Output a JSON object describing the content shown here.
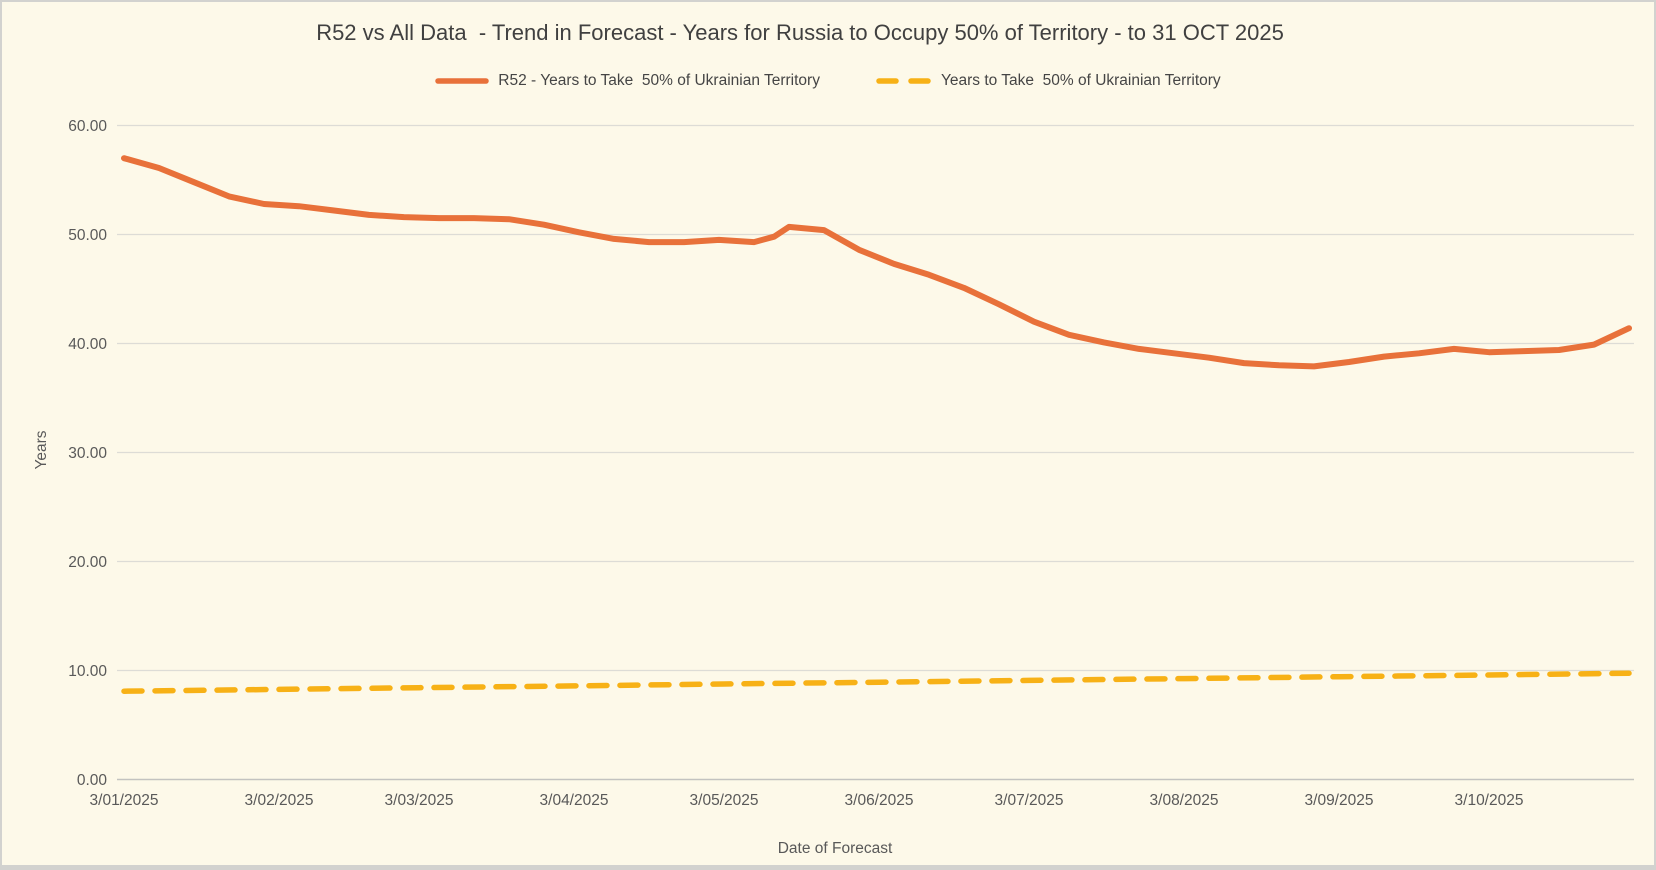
{
  "chart_data": {
    "type": "line",
    "title": "R52 vs All Data  - Trend in Forecast - Years for Russia to Occupy 50% of Territory - to 31 OCT 2025",
    "xlabel": "Date of Forecast",
    "ylabel": "Years",
    "ylim": [
      0,
      60
    ],
    "grid": "horizontal",
    "legend_position": "top",
    "background_color": "#FDF9E9",
    "gridline_color": "#dddcd6",
    "axis_line_color": "#c3c3c0",
    "tick_text_color": "#595959",
    "x_axis_start_date": "2025-01-01",
    "x_axis_end_date": "2025-11-01",
    "y_ticks": [
      {
        "value": 0,
        "label": "0.00"
      },
      {
        "value": 10,
        "label": "10.00"
      },
      {
        "value": 20,
        "label": "20.00"
      },
      {
        "value": 30,
        "label": "30.00"
      },
      {
        "value": 40,
        "label": "40.00"
      },
      {
        "value": 50,
        "label": "50.00"
      },
      {
        "value": 60,
        "label": "60.00"
      }
    ],
    "x_ticks": [
      {
        "date": "2025-01-03",
        "label": "3/01/2025"
      },
      {
        "date": "2025-02-03",
        "label": "3/02/2025"
      },
      {
        "date": "2025-03-03",
        "label": "3/03/2025"
      },
      {
        "date": "2025-04-03",
        "label": "3/04/2025"
      },
      {
        "date": "2025-05-03",
        "label": "3/05/2025"
      },
      {
        "date": "2025-06-03",
        "label": "3/06/2025"
      },
      {
        "date": "2025-07-03",
        "label": "3/07/2025"
      },
      {
        "date": "2025-08-03",
        "label": "3/08/2025"
      },
      {
        "date": "2025-09-03",
        "label": "3/09/2025"
      },
      {
        "date": "2025-10-03",
        "label": "3/10/2025"
      }
    ],
    "series": [
      {
        "name": "R52 - Years to Take  50% of Ukrainian Territory",
        "color": "#E8713A",
        "line_style": "solid",
        "points": [
          {
            "date": "2025-01-03",
            "value": 57.0
          },
          {
            "date": "2025-01-10",
            "value": 56.1
          },
          {
            "date": "2025-01-17",
            "value": 54.8
          },
          {
            "date": "2025-01-24",
            "value": 53.5
          },
          {
            "date": "2025-01-31",
            "value": 52.8
          },
          {
            "date": "2025-02-07",
            "value": 52.6
          },
          {
            "date": "2025-02-14",
            "value": 52.2
          },
          {
            "date": "2025-02-21",
            "value": 51.8
          },
          {
            "date": "2025-02-28",
            "value": 51.6
          },
          {
            "date": "2025-03-07",
            "value": 51.5
          },
          {
            "date": "2025-03-14",
            "value": 51.5
          },
          {
            "date": "2025-03-21",
            "value": 51.4
          },
          {
            "date": "2025-03-28",
            "value": 50.9
          },
          {
            "date": "2025-04-04",
            "value": 50.2
          },
          {
            "date": "2025-04-11",
            "value": 49.6
          },
          {
            "date": "2025-04-18",
            "value": 49.3
          },
          {
            "date": "2025-04-25",
            "value": 49.3
          },
          {
            "date": "2025-05-02",
            "value": 49.5
          },
          {
            "date": "2025-05-09",
            "value": 49.3
          },
          {
            "date": "2025-05-13",
            "value": 49.8
          },
          {
            "date": "2025-05-16",
            "value": 50.7
          },
          {
            "date": "2025-05-23",
            "value": 50.4
          },
          {
            "date": "2025-05-30",
            "value": 48.6
          },
          {
            "date": "2025-06-06",
            "value": 47.3
          },
          {
            "date": "2025-06-13",
            "value": 46.3
          },
          {
            "date": "2025-06-20",
            "value": 45.1
          },
          {
            "date": "2025-06-27",
            "value": 43.6
          },
          {
            "date": "2025-07-04",
            "value": 42.0
          },
          {
            "date": "2025-07-11",
            "value": 40.8
          },
          {
            "date": "2025-07-18",
            "value": 40.1
          },
          {
            "date": "2025-07-25",
            "value": 39.5
          },
          {
            "date": "2025-08-01",
            "value": 39.1
          },
          {
            "date": "2025-08-08",
            "value": 38.7
          },
          {
            "date": "2025-08-15",
            "value": 38.2
          },
          {
            "date": "2025-08-22",
            "value": 38.0
          },
          {
            "date": "2025-08-29",
            "value": 37.9
          },
          {
            "date": "2025-09-05",
            "value": 38.3
          },
          {
            "date": "2025-09-12",
            "value": 38.8
          },
          {
            "date": "2025-09-19",
            "value": 39.1
          },
          {
            "date": "2025-09-26",
            "value": 39.5
          },
          {
            "date": "2025-10-03",
            "value": 39.2
          },
          {
            "date": "2025-10-10",
            "value": 39.3
          },
          {
            "date": "2025-10-17",
            "value": 39.4
          },
          {
            "date": "2025-10-24",
            "value": 39.9
          },
          {
            "date": "2025-10-31",
            "value": 41.4
          }
        ]
      },
      {
        "name": "Years to Take  50% of Ukrainian Territory",
        "color": "#F7B116",
        "line_style": "dashed",
        "points": [
          {
            "date": "2025-01-03",
            "value": 8.1
          },
          {
            "date": "2025-02-03",
            "value": 8.27
          },
          {
            "date": "2025-03-03",
            "value": 8.42
          },
          {
            "date": "2025-04-03",
            "value": 8.59
          },
          {
            "date": "2025-05-03",
            "value": 8.76
          },
          {
            "date": "2025-06-03",
            "value": 8.93
          },
          {
            "date": "2025-07-03",
            "value": 9.09
          },
          {
            "date": "2025-08-03",
            "value": 9.26
          },
          {
            "date": "2025-09-03",
            "value": 9.43
          },
          {
            "date": "2025-10-03",
            "value": 9.59
          },
          {
            "date": "2025-10-31",
            "value": 9.75
          }
        ]
      }
    ]
  }
}
